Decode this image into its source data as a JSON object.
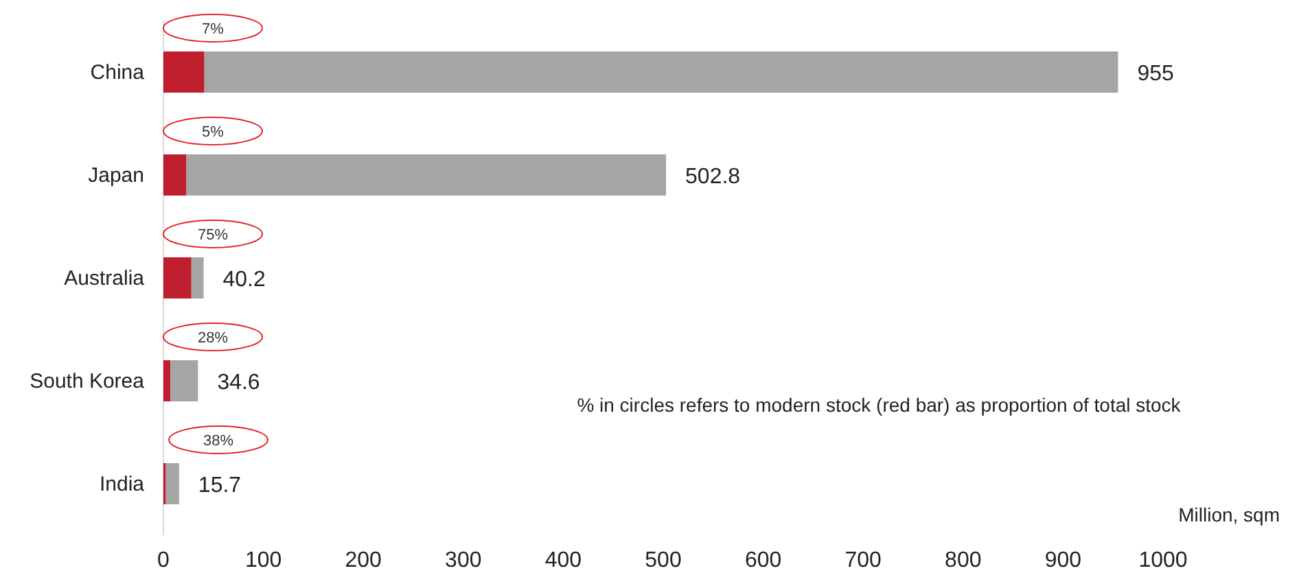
{
  "chart_data": {
    "type": "bar",
    "orientation": "horizontal",
    "stacked": true,
    "categories": [
      "China",
      "Japan",
      "Australia",
      "South Korea",
      "India"
    ],
    "series": [
      {
        "color": "#be1e2d",
        "values": [
          41,
          23,
          28,
          7,
          2.5
        ]
      },
      {
        "color": "#a5a5a4",
        "values": [
          914,
          479.8,
          12.2,
          27.6,
          13.2
        ]
      }
    ],
    "totals": [
      "955",
      "502.8",
      "40.2",
      "34.6",
      "15.7"
    ],
    "xlim": [
      0,
      1000
    ],
    "xticks": [
      0,
      100,
      200,
      300,
      400,
      500,
      600,
      700,
      800,
      900,
      1000
    ],
    "xlabel": "Million, sqm",
    "annotations": [
      "7%",
      "5%",
      "75%",
      "28%",
      "38%",
      "% in circles refers to modern stock (red bar) as proportion of total stock"
    ],
    "grid": false
  }
}
